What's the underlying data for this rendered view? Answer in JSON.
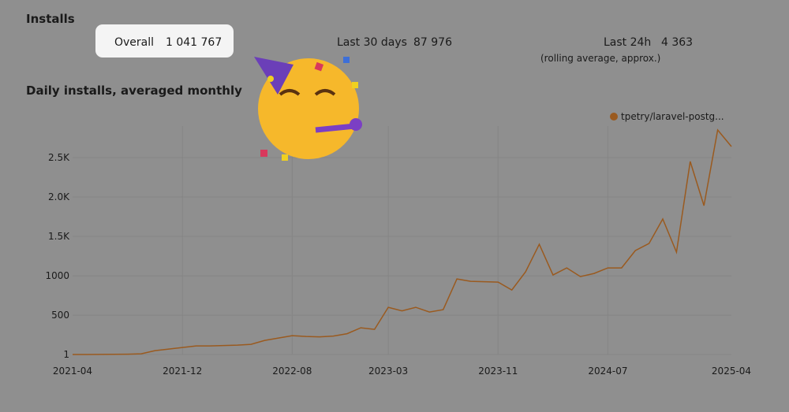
{
  "header": {
    "title": "Installs",
    "stats": [
      {
        "label": "Overall",
        "value": "1 041 767"
      },
      {
        "label": "Last 30 days",
        "value": "87 976"
      },
      {
        "label": "Last 24h",
        "value": "4 363",
        "note": "(rolling average, approx.)"
      }
    ]
  },
  "chart_data": {
    "type": "line",
    "title": "Daily installs, averaged monthly",
    "categories": [
      "2021-04",
      null,
      null,
      null,
      null,
      null,
      null,
      null,
      "2021-12",
      null,
      null,
      null,
      null,
      null,
      null,
      null,
      "2022-08",
      null,
      null,
      null,
      null,
      null,
      null,
      "2023-03",
      null,
      null,
      null,
      null,
      null,
      null,
      null,
      "2023-11",
      null,
      null,
      null,
      null,
      null,
      null,
      null,
      "2024-07",
      null,
      null,
      null,
      null,
      null,
      null,
      null,
      null,
      "2025-04"
    ],
    "series": [
      {
        "name": "tpetry/laravel-postg...",
        "color": "#9a5a1f",
        "values": [
          1,
          1,
          2,
          3,
          5,
          10,
          50,
          70,
          90,
          110,
          110,
          115,
          120,
          130,
          180,
          210,
          240,
          230,
          225,
          235,
          265,
          340,
          320,
          600,
          555,
          600,
          540,
          570,
          960,
          930,
          925,
          920,
          820,
          1050,
          1400,
          1010,
          1100,
          990,
          1030,
          1100,
          1100,
          1320,
          1410,
          1720,
          1300,
          2450,
          1890,
          2850,
          2640
        ]
      }
    ],
    "ylim": [
      1,
      2900
    ],
    "yticks": [
      1,
      500,
      1000,
      {
        "value": 1500,
        "label": "1.5K"
      },
      {
        "value": 2000,
        "label": "2.0K"
      },
      {
        "value": 2500,
        "label": "2.5K"
      }
    ],
    "grid": true,
    "legend": "top-right"
  }
}
